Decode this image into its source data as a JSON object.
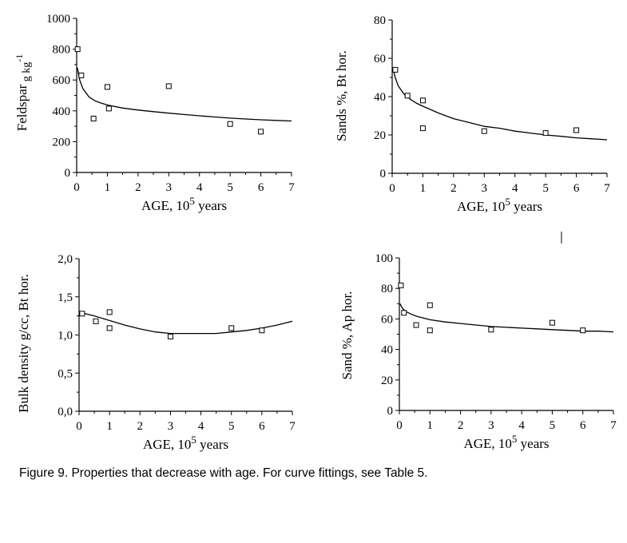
{
  "caption": "Figure 9. Properties that decrease with age. For curve fittings, see Table 5.",
  "chart_data": [
    {
      "type": "scatter",
      "xlabel": "AGE, 10",
      "xlabel_sup": "5",
      "xlabel_tail": " years",
      "ylabel": "Feldspar",
      "ylabel_unit": "g kg",
      "ylabel_unit_sup": "-1",
      "xlim": [
        0,
        7
      ],
      "ylim": [
        0,
        1000
      ],
      "xticks": [
        "0",
        "1",
        "2",
        "3",
        "4",
        "5",
        "6",
        "7"
      ],
      "yticks": [
        "0",
        "200",
        "400",
        "600",
        "800",
        "1000"
      ],
      "points": [
        [
          0.03,
          800
        ],
        [
          0.15,
          630
        ],
        [
          0.55,
          350
        ],
        [
          1.0,
          555
        ],
        [
          1.05,
          415
        ],
        [
          3.0,
          560
        ],
        [
          5.0,
          315
        ],
        [
          6.0,
          265
        ]
      ],
      "fit_curve": [
        [
          0.02,
          680
        ],
        [
          0.1,
          600
        ],
        [
          0.2,
          545
        ],
        [
          0.4,
          490
        ],
        [
          0.6,
          465
        ],
        [
          0.8,
          450
        ],
        [
          1.0,
          438
        ],
        [
          1.5,
          418
        ],
        [
          2.0,
          405
        ],
        [
          2.5,
          395
        ],
        [
          3.0,
          385
        ],
        [
          3.5,
          376
        ],
        [
          4.0,
          368
        ],
        [
          4.5,
          360
        ],
        [
          5.0,
          353
        ],
        [
          5.5,
          347
        ],
        [
          6.0,
          342
        ],
        [
          6.5,
          338
        ],
        [
          7.0,
          334
        ]
      ]
    },
    {
      "type": "scatter",
      "xlabel": "AGE, 10",
      "xlabel_sup": "5",
      "xlabel_tail": " years",
      "ylabel": "Sands %,  Bt hor.",
      "xlim": [
        0,
        7
      ],
      "ylim": [
        0,
        80
      ],
      "xticks": [
        "0",
        "1",
        "2",
        "3",
        "4",
        "5",
        "6",
        "7"
      ],
      "yticks": [
        "0",
        "20",
        "40",
        "60",
        "80"
      ],
      "points": [
        [
          0.1,
          54
        ],
        [
          0.5,
          40.5
        ],
        [
          1.0,
          38
        ],
        [
          1.0,
          23.5
        ],
        [
          3.0,
          22
        ],
        [
          5.0,
          21
        ],
        [
          6.0,
          22.5
        ]
      ],
      "fit_curve": [
        [
          0.02,
          55
        ],
        [
          0.1,
          50
        ],
        [
          0.2,
          45.5
        ],
        [
          0.4,
          41
        ],
        [
          0.6,
          38.5
        ],
        [
          0.8,
          36.5
        ],
        [
          1.0,
          35
        ],
        [
          1.5,
          31.5
        ],
        [
          2.0,
          28.5
        ],
        [
          2.5,
          26.5
        ],
        [
          3.0,
          24.5
        ],
        [
          3.5,
          23.5
        ],
        [
          4.0,
          22
        ],
        [
          4.5,
          21
        ],
        [
          5.0,
          20
        ],
        [
          5.5,
          19.3
        ],
        [
          6.0,
          18.5
        ],
        [
          6.5,
          18
        ],
        [
          7.0,
          17.5
        ]
      ]
    },
    {
      "type": "scatter",
      "xlabel": "AGE, 10",
      "xlabel_sup": "5",
      "xlabel_tail": " years",
      "ylabel": "Bulk density  g/cc,  Bt hor.",
      "xlim": [
        0,
        7
      ],
      "ylim": [
        0,
        2
      ],
      "xticks": [
        "0",
        "1",
        "2",
        "3",
        "4",
        "5",
        "6",
        "7"
      ],
      "yticks": [
        "0,0",
        "0,5",
        "1,0",
        "1,5",
        "2,0"
      ],
      "points": [
        [
          0.1,
          1.28
        ],
        [
          0.55,
          1.18
        ],
        [
          1.0,
          1.3
        ],
        [
          1.0,
          1.09
        ],
        [
          3.0,
          0.98
        ],
        [
          5.0,
          1.09
        ],
        [
          6.0,
          1.06
        ]
      ],
      "fit_curve": [
        [
          0.0,
          1.3
        ],
        [
          0.5,
          1.25
        ],
        [
          1.0,
          1.19
        ],
        [
          1.5,
          1.13
        ],
        [
          2.0,
          1.08
        ],
        [
          2.5,
          1.04
        ],
        [
          3.0,
          1.02
        ],
        [
          3.5,
          1.02
        ],
        [
          4.0,
          1.02
        ],
        [
          4.5,
          1.02
        ],
        [
          5.0,
          1.04
        ],
        [
          5.5,
          1.06
        ],
        [
          6.0,
          1.09
        ],
        [
          6.5,
          1.13
        ],
        [
          7.0,
          1.18
        ]
      ]
    },
    {
      "type": "scatter",
      "xlabel": "AGE, 10",
      "xlabel_sup": "5",
      "xlabel_tail": " years",
      "ylabel": "Sand %,  Ap hor.",
      "xlim": [
        0,
        7
      ],
      "ylim": [
        0,
        100
      ],
      "xticks": [
        "0",
        "1",
        "2",
        "3",
        "4",
        "5",
        "6",
        "7"
      ],
      "yticks": [
        "0",
        "20",
        "40",
        "60",
        "80",
        "100"
      ],
      "points": [
        [
          0.05,
          82
        ],
        [
          0.15,
          64
        ],
        [
          0.55,
          56
        ],
        [
          1.0,
          69
        ],
        [
          1.0,
          52.5
        ],
        [
          3.0,
          53
        ],
        [
          5.0,
          57.5
        ],
        [
          6.0,
          52.5
        ]
      ],
      "fit_curve": [
        [
          0.02,
          70
        ],
        [
          0.1,
          67
        ],
        [
          0.2,
          65
        ],
        [
          0.4,
          63
        ],
        [
          0.6,
          61.5
        ],
        [
          0.8,
          60.5
        ],
        [
          1.0,
          59.5
        ],
        [
          1.5,
          58
        ],
        [
          2.0,
          57
        ],
        [
          2.5,
          56
        ],
        [
          3.0,
          55
        ],
        [
          3.5,
          54.5
        ],
        [
          4.0,
          54
        ],
        [
          4.5,
          53.5
        ],
        [
          5.0,
          53
        ],
        [
          5.5,
          52.5
        ],
        [
          6.0,
          52
        ],
        [
          6.5,
          52
        ],
        [
          7.0,
          51.5
        ]
      ]
    }
  ]
}
